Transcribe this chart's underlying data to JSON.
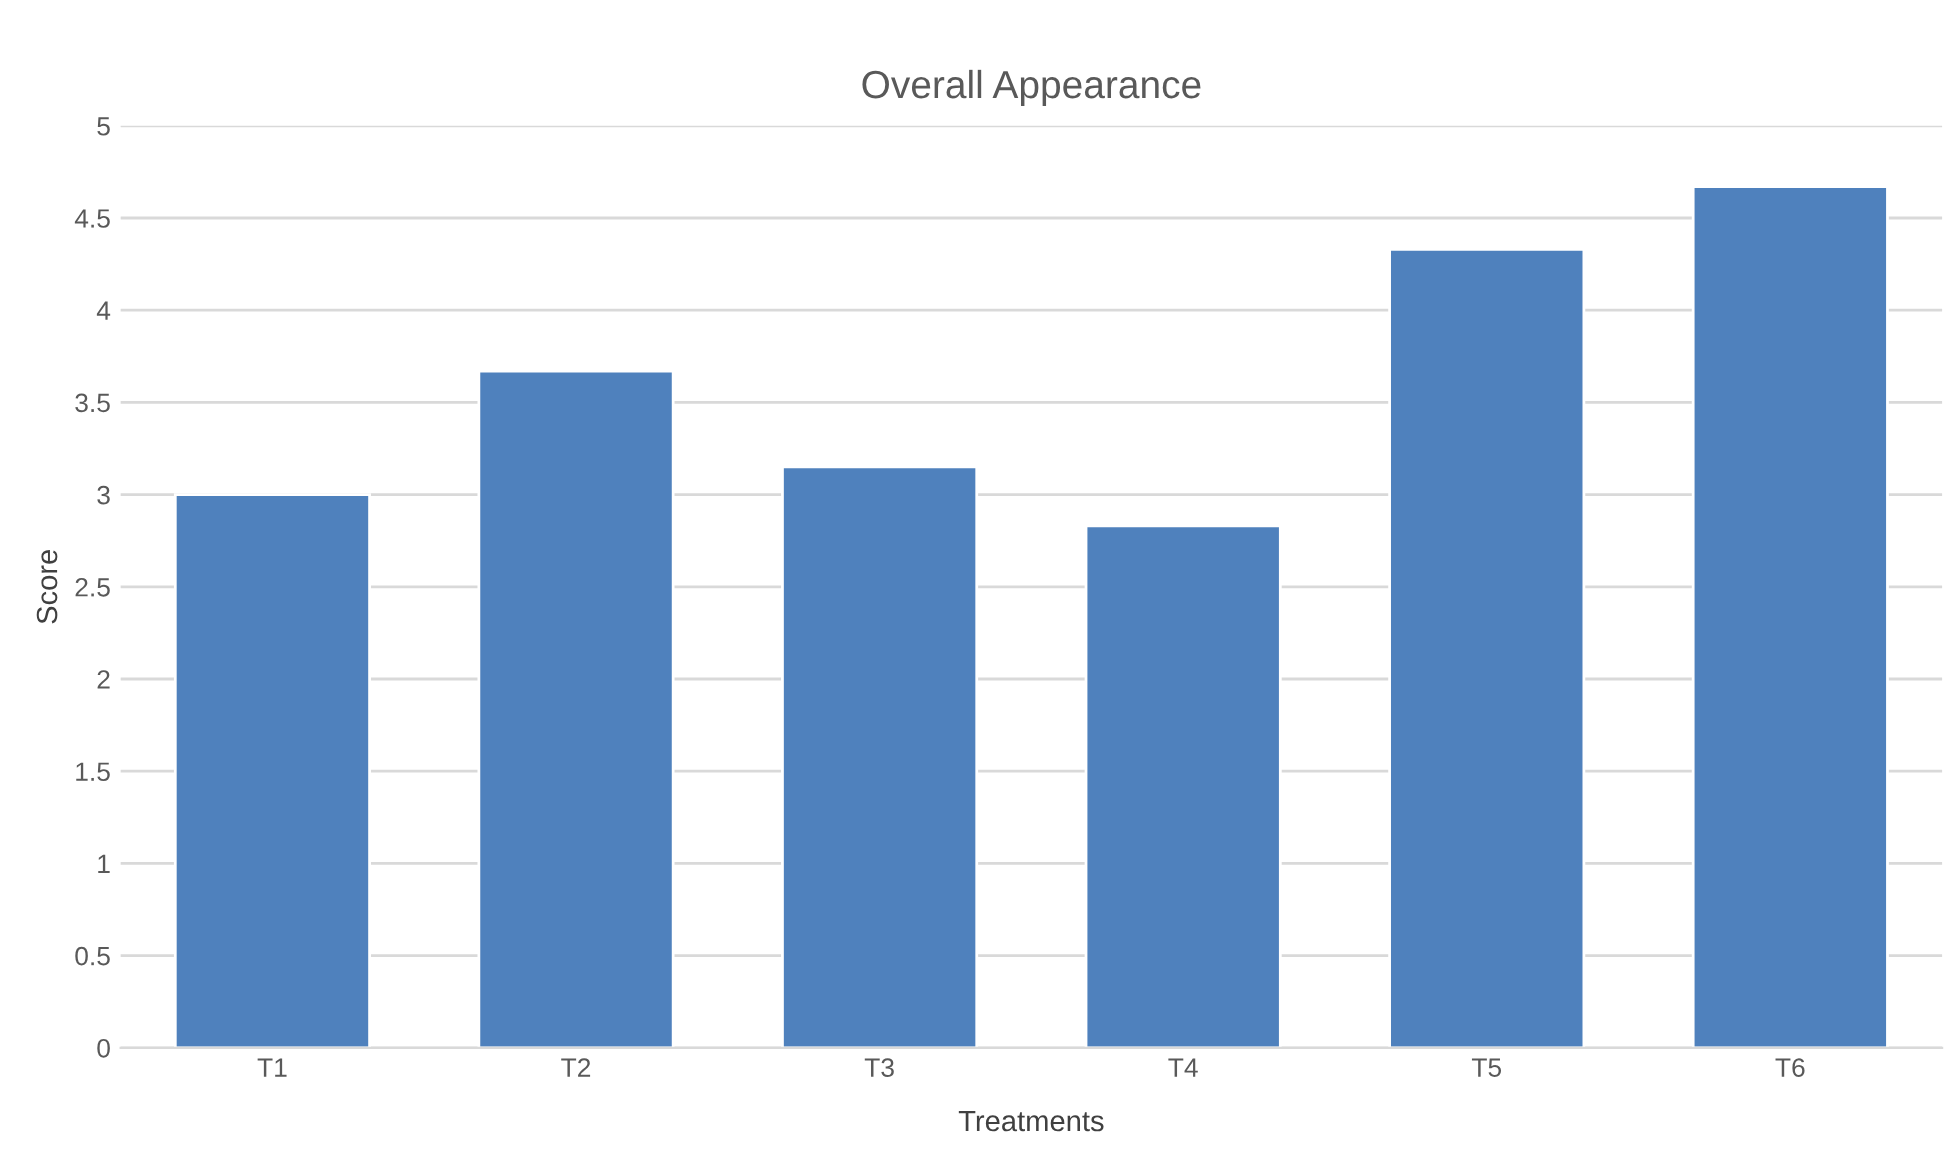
{
  "chart_data": {
    "type": "bar",
    "title": "Overall Appearance",
    "xlabel": "Treatments",
    "ylabel": "Score",
    "categories": [
      "T1",
      "T2",
      "T3",
      "T4",
      "T5",
      "T6"
    ],
    "values": [
      3.0,
      3.67,
      3.15,
      2.83,
      4.33,
      4.67
    ],
    "color": "#4f81bd",
    "ylim": [
      0,
      5
    ],
    "yticks": [
      0,
      0.5,
      1,
      1.5,
      2,
      2.5,
      3,
      3.5,
      4,
      4.5,
      5
    ],
    "grid": "y",
    "legend": false
  }
}
